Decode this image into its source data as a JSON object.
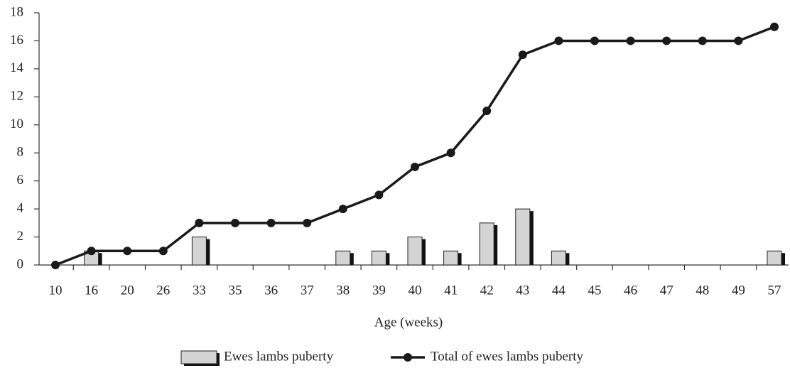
{
  "chart_data": {
    "type": "bar",
    "x_label": "Age (weeks)",
    "categories": [
      "10",
      "16",
      "20",
      "26",
      "33",
      "35",
      "36",
      "37",
      "38",
      "39",
      "40",
      "41",
      "42",
      "43",
      "44",
      "45",
      "46",
      "47",
      "48",
      "49",
      "57"
    ],
    "series": [
      {
        "name": "Ewes lambs puberty",
        "type": "bar",
        "color": "#d4d4d4",
        "values": [
          0,
          1,
          0,
          0,
          2,
          0,
          0,
          0,
          1,
          1,
          2,
          1,
          3,
          4,
          1,
          0,
          0,
          0,
          0,
          0,
          1
        ]
      },
      {
        "name": "Total of ewes lambs puberty",
        "type": "line",
        "color": "#1a1a1a",
        "values": [
          0,
          1,
          1,
          1,
          3,
          3,
          3,
          3,
          4,
          5,
          7,
          8,
          11,
          15,
          16,
          16,
          16,
          16,
          16,
          16,
          17
        ]
      }
    ],
    "ylim": [
      0,
      18
    ],
    "yticks": [
      0,
      2,
      4,
      6,
      8,
      10,
      12,
      14,
      16,
      18
    ],
    "grid": false
  }
}
